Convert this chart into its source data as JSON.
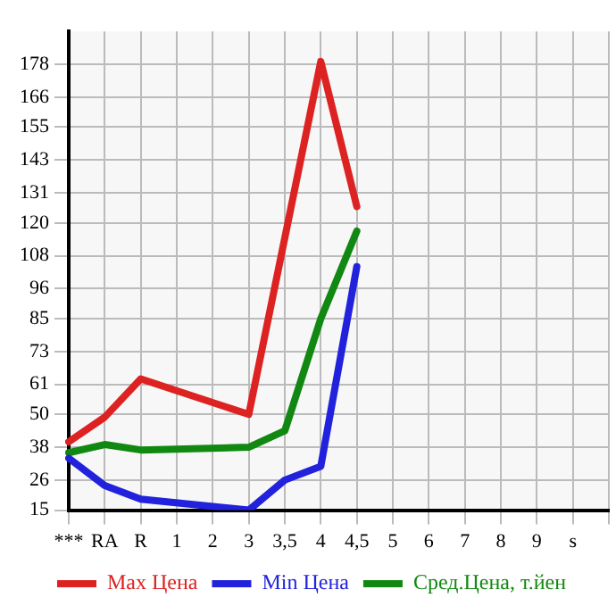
{
  "chart_data": {
    "type": "line",
    "categories": [
      "***",
      "RA",
      "R",
      "1",
      "2",
      "3",
      "3,5",
      "4",
      "4,5",
      "5",
      "6",
      "7",
      "8",
      "9",
      "s",
      null
    ],
    "series": [
      {
        "name": "Max Цена",
        "color": "#dd2222",
        "values": [
          40,
          49,
          63,
          null,
          null,
          50,
          null,
          179,
          126,
          null,
          null,
          null,
          null,
          null,
          null,
          null
        ]
      },
      {
        "name": "Min Цена",
        "color": "#2222dd",
        "values": [
          34,
          24,
          19,
          null,
          null,
          15,
          26,
          31,
          104,
          null,
          null,
          null,
          null,
          null,
          null,
          null
        ]
      },
      {
        "name": "Сред.Цена, т.йен",
        "color": "#118811",
        "values": [
          36,
          39,
          37,
          null,
          null,
          38,
          44,
          85,
          117,
          null,
          null,
          null,
          null,
          null,
          null,
          null
        ]
      }
    ],
    "ylim": [
      15,
      190
    ],
    "yticks": [
      15,
      26,
      38,
      50,
      61,
      73,
      85,
      96,
      108,
      120,
      131,
      143,
      155,
      166,
      178
    ],
    "grid": true,
    "legend": "bottom",
    "marker": "none",
    "line_style": "solid"
  }
}
